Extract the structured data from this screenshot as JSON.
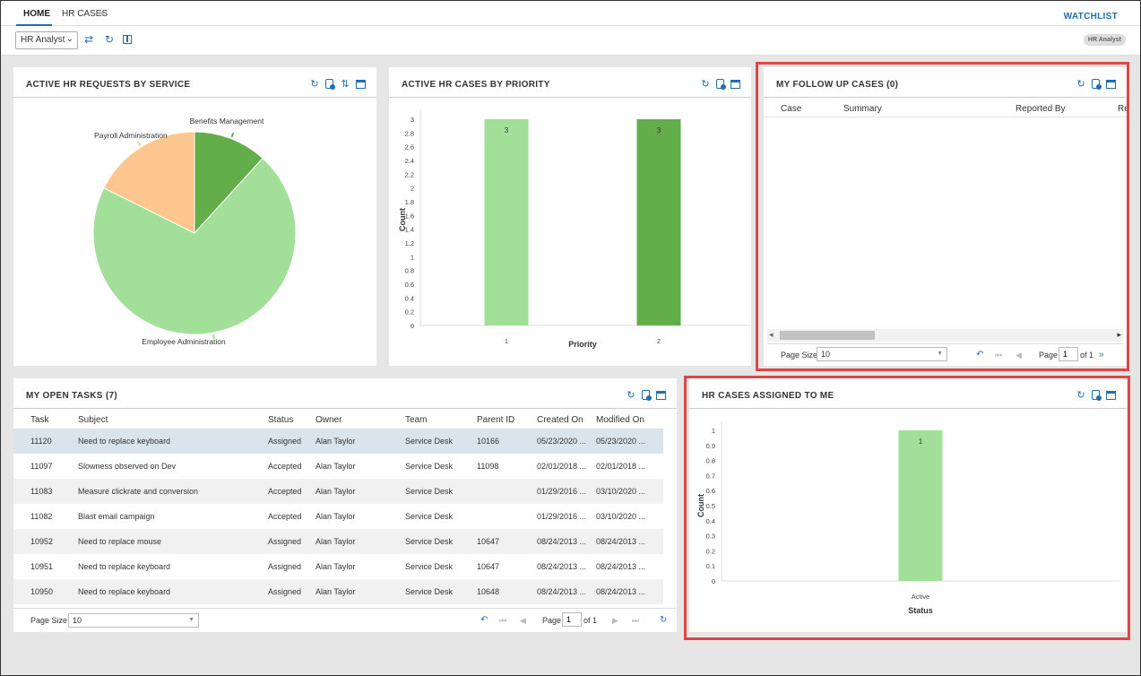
{
  "tabs": [
    {
      "label": "HOME"
    },
    {
      "label": "HR CASES"
    }
  ],
  "tab_close": "×",
  "watchlist": "WATCHLIST",
  "toolbar": {
    "role_value": "HR Analyst",
    "role_badge": "HR Analyst"
  },
  "colors": {
    "accent": "#1f6fb2",
    "light_green": "#a2e09a",
    "dark_green": "#63ad4b",
    "peach": "#fdc68e",
    "highlight": "#e04646"
  },
  "panels": {
    "requests_by_service": {
      "title": "ACTIVE HR REQUESTS BY SERVICE"
    },
    "cases_by_priority": {
      "title": "ACTIVE HR CASES BY PRIORITY"
    },
    "follow_up": {
      "title": "MY FOLLOW UP CASES (0)",
      "columns": [
        "Case",
        "Summary",
        "Reported By",
        "Re"
      ],
      "page_size_label": "Page Size",
      "page_size_value": "10",
      "page_label": "Page",
      "page_value": "1",
      "of_label": "of 1"
    },
    "open_tasks": {
      "title": "MY OPEN TASKS (7)",
      "columns": [
        "Task",
        "Subject",
        "Status",
        "Owner",
        "Team",
        "Parent ID",
        "Created On",
        "Modified On"
      ],
      "rows": [
        [
          "11120",
          "Need to replace keyboard",
          "Assigned",
          "Alan Taylor",
          "Service Desk",
          "10166",
          "05/23/2020 ...",
          "05/23/2020 ..."
        ],
        [
          "11097",
          "Slowness observed on Dev",
          "Accepted",
          "Alan Taylor",
          "Service Desk",
          "11098",
          "02/01/2018 ...",
          "02/01/2018 ..."
        ],
        [
          "11083",
          "Measure clickrate and conversion",
          "Accepted",
          "Alan Taylor",
          "Service Desk",
          "",
          "01/29/2016 ...",
          "03/10/2020 ..."
        ],
        [
          "11082",
          "Blast email campaign",
          "Accepted",
          "Alan Taylor",
          "Service Desk",
          "",
          "01/29/2016 ...",
          "03/10/2020 ..."
        ],
        [
          "10952",
          "Need to replace mouse",
          "Assigned",
          "Alan Taylor",
          "Service Desk",
          "10647",
          "08/24/2013 ...",
          "08/24/2013 ..."
        ],
        [
          "10951",
          "Need to replace keyboard",
          "Assigned",
          "Alan Taylor",
          "Service Desk",
          "10647",
          "08/24/2013 ...",
          "08/24/2013 ..."
        ],
        [
          "10950",
          "Need to replace keyboard",
          "Assigned",
          "Alan Taylor",
          "Service Desk",
          "10648",
          "08/24/2013 ...",
          "08/24/2013 ..."
        ]
      ],
      "page_size_label": "Page Size",
      "page_size_value": "10",
      "page_label": "Page",
      "page_value": "1",
      "of_label": "of 1"
    },
    "assigned_to_me": {
      "title": "HR CASES ASSIGNED TO ME"
    }
  },
  "chart_data": [
    {
      "type": "pie",
      "title": "ACTIVE HR REQUESTS BY SERVICE",
      "slices": [
        {
          "label": "Benefits Management",
          "value": 1,
          "color": "#63ad4b"
        },
        {
          "label": "Employee Administration",
          "value": 6,
          "color": "#a2e09a"
        },
        {
          "label": "Payroll Administration",
          "value": 1.5,
          "color": "#fdc68e"
        }
      ]
    },
    {
      "type": "bar",
      "title": "ACTIVE HR CASES BY PRIORITY",
      "categories": [
        "1",
        "2"
      ],
      "values": [
        3,
        3
      ],
      "colors": [
        "#a2e09a",
        "#63ad4b"
      ],
      "xlabel": "Priority",
      "ylabel": "Count",
      "ylim": [
        0,
        3
      ],
      "yticks": [
        "0",
        "0.2",
        "0.4",
        "0.6",
        "0.8",
        "1",
        "1.2",
        "1.4",
        "1.6",
        "1.8",
        "2",
        "2.2",
        "2.4",
        "2.6",
        "2.8",
        "3"
      ]
    },
    {
      "type": "bar",
      "title": "HR CASES ASSIGNED TO ME",
      "categories": [
        "Active"
      ],
      "values": [
        1
      ],
      "colors": [
        "#a2e09a"
      ],
      "xlabel": "Status",
      "ylabel": "Count",
      "ylim": [
        0,
        1
      ],
      "yticks": [
        "0",
        "0.1",
        "0.2",
        "0.3",
        "0.4",
        "0.5",
        "0.6",
        "0.7",
        "0.8",
        "0.9",
        "1"
      ]
    }
  ]
}
